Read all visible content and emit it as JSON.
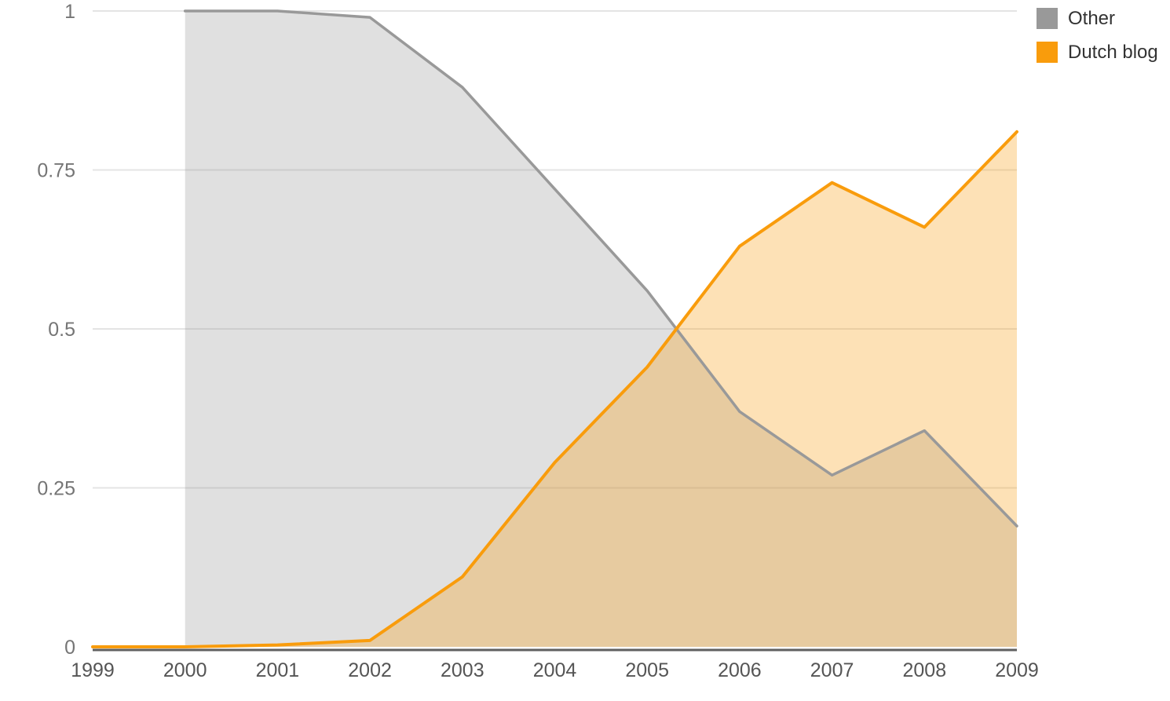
{
  "chart_data": {
    "type": "area",
    "title": "",
    "xlabel": "",
    "ylabel": "",
    "xlim": [
      1999,
      2009
    ],
    "ylim": [
      0,
      1
    ],
    "grid": true,
    "legend_position": "top-right",
    "stacked": false,
    "xticks": [
      1999,
      2000,
      2001,
      2002,
      2003,
      2004,
      2005,
      2006,
      2007,
      2008,
      2009
    ],
    "xtick_labels": [
      "1999",
      "2000",
      "2001",
      "2002",
      "2003",
      "2004",
      "2005",
      "2006",
      "2007",
      "2008",
      "2009"
    ],
    "yticks": [
      0,
      0.25,
      0.5,
      0.75,
      1
    ],
    "ytick_labels": [
      "0",
      "0.25",
      "0.5",
      "0.75",
      "1"
    ],
    "series": [
      {
        "name": "Other",
        "color": "#999999",
        "fill_opacity": 0.3,
        "line_width": 3.5,
        "points": [
          [
            2000,
            1.0
          ],
          [
            2001,
            1.0
          ],
          [
            2002,
            0.99
          ],
          [
            2003,
            0.88
          ],
          [
            2004,
            0.72
          ],
          [
            2005,
            0.56
          ],
          [
            2006,
            0.37
          ],
          [
            2007,
            0.27
          ],
          [
            2008,
            0.34
          ],
          [
            2009,
            0.19
          ]
        ]
      },
      {
        "name": "Dutch blog",
        "color": "#F99C0C",
        "fill_opacity": 0.3,
        "line_width": 4,
        "points": [
          [
            1999,
            0.0
          ],
          [
            2000,
            0.0
          ],
          [
            2001,
            0.003
          ],
          [
            2002,
            0.01
          ],
          [
            2003,
            0.11
          ],
          [
            2004,
            0.29
          ],
          [
            2005,
            0.44
          ],
          [
            2006,
            0.63
          ],
          [
            2007,
            0.73
          ],
          [
            2008,
            0.66
          ],
          [
            2009,
            0.81
          ]
        ]
      }
    ]
  },
  "style_colors": {
    "gridline": "#E4E4E4",
    "axis_line": "#5F5F5F",
    "y_tick_label": "#757575",
    "x_tick_label": "#555555",
    "legend_text": "#333333"
  }
}
